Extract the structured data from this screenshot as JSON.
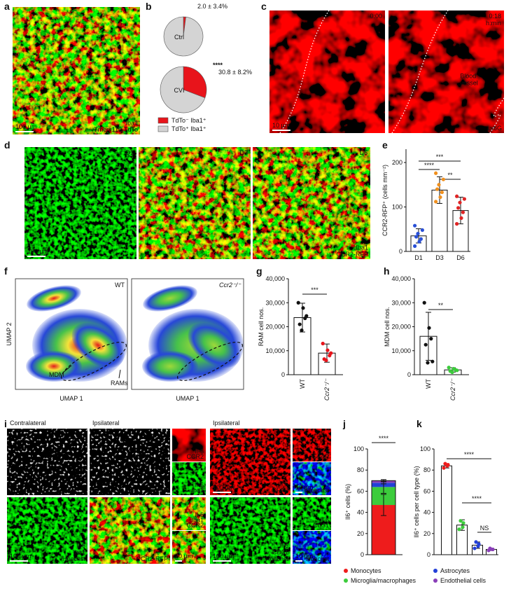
{
  "panels": [
    "a",
    "b",
    "c",
    "d",
    "e",
    "f",
    "g",
    "h",
    "i",
    "j",
    "k"
  ],
  "images": [
    {
      "bottom": [
        {
          "text": "Iba1",
          "color": "#3fd23f"
        },
        {
          "text": "Tmem119-TdTo",
          "color": "#ff3030"
        }
      ],
      "scale": "100 μm"
    },
    {
      "top": [
        "0:00"
      ],
      "scale": "10 μm"
    },
    {
      "top": [
        "0:18",
        "h:min"
      ],
      "note": [
        "Blood",
        "vessel"
      ],
      "bottom": [
        {
          "text": "Ly6G",
          "color": "#ff3030"
        }
      ]
    },
    {
      "top": [
        "D1"
      ],
      "scale": "100 μm"
    },
    {
      "top": [
        "D3"
      ]
    },
    {
      "top": [
        "D6"
      ],
      "bottom": [
        {
          "text": "Iba1",
          "color": "#3fd23f"
        },
        {
          "text": "CCR2-RFP",
          "color": "#ff3030"
        }
      ]
    },
    {
      "caption": "Contralateral"
    },
    {
      "caption": "Ipsilateral",
      "bottom": [
        {
          "text": "Il-6",
          "color": "#ffffff"
        }
      ]
    },
    {
      "bottom": [
        {
          "text": "Il-6",
          "color": "#ffffff"
        },
        {
          "text": "CCR2",
          "color": "#ff3030"
        }
      ]
    },
    {
      "bottom": [
        {
          "text": "Il-6",
          "color": "#ffffff"
        },
        {
          "text": "Iba1",
          "color": "#3fd23f"
        }
      ]
    },
    {
      "bottom": [
        {
          "text": "Il-6",
          "color": "#ffffff"
        },
        {
          "text": "Iba1",
          "color": "#3fd23f"
        },
        {
          "text": "Hoechst",
          "color": "#4a6cff"
        }
      ],
      "scale": "100 μm"
    },
    {
      "bottom": [
        {
          "text": "CCR2-RFP",
          "color": "#ff3030"
        }
      ]
    },
    {
      "bottom": [
        {
          "text": "Il-6",
          "color": "#ffffff"
        },
        {
          "text": "Iba1",
          "color": "#3fd23f"
        },
        {
          "text": "CCR2",
          "color": "#ff3030"
        }
      ]
    },
    {
      "scale": "10 μm"
    },
    {
      "caption": "Ipsilateral",
      "bottom": [
        {
          "text": "Il-6",
          "color": "#ffffff"
        },
        {
          "text": "GFAP",
          "color": "#ff3030"
        }
      ],
      "scale": "100 μm"
    },
    {
      "bottom": [
        {
          "text": "Il-6",
          "color": "#ffffff"
        },
        {
          "text": "GFAP",
          "color": "#ff3030"
        }
      ]
    },
    {
      "bottom": [
        {
          "text": "Hoechst",
          "color": "#4a6cff"
        }
      ],
      "scale": "10 μm"
    },
    {
      "bottom": [
        {
          "text": "Il-6",
          "color": "#ffffff"
        },
        {
          "text": "CD31",
          "color": "#3fd23f"
        },
        {
          "text": "Hoechst",
          "color": "#4a6cff"
        }
      ],
      "scale": "100 μm"
    },
    {
      "bottom": [
        {
          "text": "Il-6",
          "color": "#ffffff"
        },
        {
          "text": "CD31",
          "color": "#3fd23f"
        }
      ]
    },
    {
      "bottom": [
        {
          "text": "Hoechst",
          "color": "#4a6cff"
        }
      ],
      "scale": "10 μm"
    }
  ],
  "umap": {
    "titles": [
      "WT",
      "Ccr2⁻/⁻"
    ],
    "ylabel": "UMAP 2",
    "xlabels": [
      "UMAP 1",
      "UMAP 1"
    ],
    "annotations": [
      "MDM",
      "RAMs"
    ]
  },
  "chart_data": [
    {
      "type": "pie",
      "categories": [
        "Ctrl",
        "CVI"
      ],
      "series": [
        {
          "name": "TdTo⁻ Iba1⁺",
          "color": "#e8141b",
          "values": [
            2.0,
            30.8
          ],
          "value_labels": [
            "2.0 ± 3.4%",
            "30.8 ± 8.2%"
          ]
        },
        {
          "name": "TdTo⁺ Iba1⁺",
          "color": "#d4d4d4",
          "values": [
            98.0,
            69.2
          ]
        }
      ],
      "annotations": [
        "****"
      ]
    },
    {
      "type": "bar",
      "ylabel": "CCR2-RFP⁺ (cells mm⁻²)",
      "categories": [
        "D1",
        "D3",
        "D6"
      ],
      "values": [
        35,
        138,
        92
      ],
      "errors": [
        16,
        30,
        30
      ],
      "colors": [
        "#2a50d6",
        "#f0901e",
        "#e02424"
      ],
      "points": [
        [
          12,
          22,
          28,
          33,
          40,
          48,
          58
        ],
        [
          112,
          122,
          133,
          140,
          150,
          162,
          176
        ],
        [
          62,
          75,
          88,
          98,
          110,
          118,
          124
        ]
      ],
      "ylim": [
        0,
        230
      ],
      "yticks": [
        0,
        100,
        200
      ],
      "annotations": [
        "***",
        "****",
        "**"
      ]
    },
    {
      "type": "bar",
      "ylabel": "RAM cell nos.",
      "categories": [
        "WT",
        "Ccr2⁻/⁻"
      ],
      "values": [
        23800,
        9000
      ],
      "errors": [
        6000,
        3800
      ],
      "colors": [
        "#111111",
        "#e8141b"
      ],
      "points": [
        [
          30000,
          27800,
          23500,
          21000,
          18500,
          24500
        ],
        [
          13000,
          10200,
          8000,
          6500,
          6000,
          9000
        ]
      ],
      "ylim": [
        0,
        40000
      ],
      "yticks": [
        0,
        {
          "value": 10000,
          "label": "10,000"
        },
        {
          "value": 20000,
          "label": "20,000"
        },
        {
          "value": 30000,
          "label": "30,000"
        },
        {
          "value": 40000,
          "label": "40,000"
        }
      ],
      "annotations": [
        "***"
      ]
    },
    {
      "type": "bar",
      "ylabel": "MDM cell nos.",
      "categories": [
        "WT",
        "Ccr2⁻/⁻"
      ],
      "values": [
        16000,
        2000
      ],
      "errors": [
        10000,
        900
      ],
      "colors": [
        "#111111",
        "#3ccc3c"
      ],
      "points": [
        [
          30000,
          19500,
          15000,
          12500,
          5000,
          5500
        ],
        [
          3000,
          2500,
          2000,
          1500,
          1000,
          1800
        ]
      ],
      "ylim": [
        0,
        40000
      ],
      "yticks": [
        0,
        {
          "value": 10000,
          "label": "10,000"
        },
        {
          "value": 20000,
          "label": "20,000"
        },
        {
          "value": 30000,
          "label": "30,000"
        },
        {
          "value": 40000,
          "label": "40,000"
        }
      ],
      "annotations": [
        "**"
      ]
    },
    {
      "type": "stacked_bar",
      "ylabel": "Il6⁺ cells (%)",
      "series": [
        {
          "name": "Monocytes",
          "color": "#ee1c1c",
          "values": [
            47
          ],
          "errors": [
            10
          ]
        },
        {
          "name": "Microglia/macrophages",
          "color": "#3ccc3c",
          "values": [
            17
          ],
          "errors": [
            6
          ]
        },
        {
          "name": "Astrocytes",
          "color": "#2340d8",
          "values": [
            4
          ],
          "errors": [
            1
          ]
        },
        {
          "name": "Endothelial cells",
          "color": "#8a3fb8",
          "values": [
            2
          ],
          "errors": [
            1
          ]
        }
      ],
      "ylim": [
        0,
        100
      ],
      "yticks": [
        0,
        20,
        40,
        60,
        80,
        100
      ],
      "annotations": [
        "****"
      ]
    },
    {
      "type": "bar",
      "ylabel": "Il6⁺ cells per cell type (%)",
      "values": [
        84,
        28,
        9,
        5
      ],
      "errors": [
        2,
        5,
        3,
        1
      ],
      "colors": [
        "#ee1c1c",
        "#3ccc3c",
        "#2340d8",
        "#8a3fb8"
      ],
      "points": [
        [
          82,
          84,
          85,
          86
        ],
        [
          24,
          26,
          30,
          32
        ],
        [
          6,
          8,
          10,
          12
        ],
        [
          4,
          5,
          5,
          6
        ]
      ],
      "ylim": [
        0,
        100
      ],
      "yticks": [
        0,
        20,
        40,
        60,
        80,
        100
      ],
      "annotations": [
        "****",
        "****",
        "NS"
      ]
    }
  ]
}
